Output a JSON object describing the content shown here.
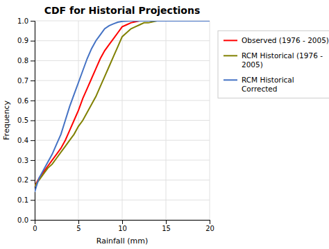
{
  "chart_data": {
    "type": "line",
    "title": "CDF for Historial Projections",
    "x_label": "Rainfall (mm)",
    "y_label": "Frequency",
    "xlim": [
      0,
      20
    ],
    "ylim": [
      0,
      1
    ],
    "xticks": [
      0,
      5,
      10,
      15,
      20
    ],
    "yticks": [
      {
        "value": 0,
        "label": "0.0"
      },
      0.1,
      0.2,
      0.3,
      0.4,
      0.5,
      0.6,
      0.7,
      0.8,
      0.9,
      {
        "value": 1,
        "label": "1.0"
      }
    ],
    "grid": true,
    "legend": "right",
    "series": [
      {
        "name": "Observed (1976 - 2005)",
        "color": "#ff0000",
        "x": [
          0,
          0.5,
          1.0,
          1.5,
          2.0,
          2.5,
          3.0,
          3.5,
          4.0,
          4.5,
          5.0,
          5.5,
          6.0,
          6.5,
          7.0,
          7.5,
          8.0,
          8.5,
          9.0,
          9.5,
          10.0,
          10.5,
          11.0,
          12.0,
          13.0,
          20.0
        ],
        "values": [
          0.17,
          0.21,
          0.24,
          0.27,
          0.3,
          0.33,
          0.36,
          0.4,
          0.45,
          0.5,
          0.55,
          0.61,
          0.66,
          0.71,
          0.76,
          0.81,
          0.85,
          0.88,
          0.91,
          0.94,
          0.97,
          0.98,
          0.99,
          1.0,
          1.0,
          1.0
        ]
      },
      {
        "name": "RCM Historical (1976 -\n2005)",
        "color": "#808000",
        "x": [
          0,
          0.5,
          1.0,
          1.5,
          2.0,
          2.5,
          3.0,
          3.5,
          4.0,
          4.5,
          5.0,
          5.5,
          6.0,
          6.5,
          7.0,
          7.5,
          8.0,
          8.5,
          9.0,
          9.5,
          10.0,
          10.5,
          11.0,
          11.5,
          12.0,
          12.5,
          13.0,
          14.0,
          15.0,
          19.0,
          20.0
        ],
        "values": [
          0.17,
          0.2,
          0.23,
          0.26,
          0.28,
          0.31,
          0.34,
          0.37,
          0.4,
          0.43,
          0.47,
          0.5,
          0.54,
          0.58,
          0.62,
          0.67,
          0.72,
          0.77,
          0.82,
          0.87,
          0.92,
          0.94,
          0.96,
          0.97,
          0.98,
          0.99,
          0.99,
          1.0,
          1.0,
          1.0,
          1.0
        ]
      },
      {
        "name": "RCM Historical\nCorrected",
        "color": "#4472c4",
        "x": [
          0,
          0.2,
          0.5,
          1.0,
          1.5,
          2.0,
          2.5,
          3.0,
          3.5,
          4.0,
          4.5,
          5.0,
          5.5,
          6.0,
          6.5,
          7.0,
          7.5,
          8.0,
          8.5,
          9.0,
          9.5,
          10.0,
          11.0,
          20.0
        ],
        "values": [
          0.14,
          0.17,
          0.21,
          0.25,
          0.29,
          0.33,
          0.38,
          0.43,
          0.5,
          0.57,
          0.63,
          0.69,
          0.75,
          0.81,
          0.86,
          0.9,
          0.93,
          0.96,
          0.975,
          0.985,
          0.993,
          0.997,
          1.0,
          1.0
        ]
      }
    ]
  }
}
